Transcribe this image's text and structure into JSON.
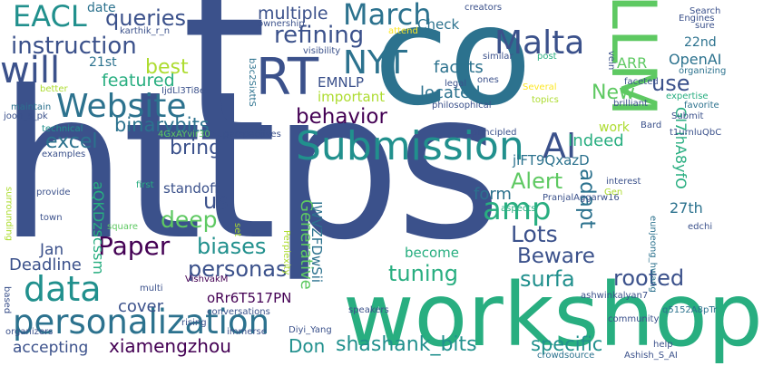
{
  "background": "#ffffff",
  "palette": [
    "#3b518b",
    "#2c728e",
    "#21908d",
    "#28ae80",
    "#5ec962",
    "#addc30",
    "#fde725",
    "#440154"
  ],
  "words": [
    {
      "text": "https",
      "color": "#3b518b"
    },
    {
      "text": "t",
      "color": "#3b518b"
    },
    {
      "text": "co",
      "color": "#2c728e"
    },
    {
      "text": "workshop",
      "color": "#28ae80"
    },
    {
      "text": "LLM",
      "color": "#5ec962"
    },
    {
      "text": "RT",
      "color": "#3b518b"
    },
    {
      "text": "Submission",
      "color": "#21908d"
    },
    {
      "text": "personalization",
      "color": "#2c728e"
    },
    {
      "text": "Website",
      "color": "#2c728e"
    },
    {
      "text": "Paper",
      "color": "#440154"
    },
    {
      "text": "data",
      "color": "#21908d"
    },
    {
      "text": "amp",
      "color": "#28ae80"
    },
    {
      "text": "AI",
      "color": "#3b518b"
    },
    {
      "text": "Malta",
      "color": "#3b518b"
    },
    {
      "text": "March",
      "color": "#2c728e"
    },
    {
      "text": "will",
      "color": "#3b518b"
    },
    {
      "text": "EACL",
      "color": "#21908d"
    },
    {
      "text": "NYT",
      "color": "#2c728e"
    },
    {
      "text": "instruction",
      "color": "#3b518b"
    },
    {
      "text": "queries",
      "color": "#3b518b"
    },
    {
      "text": "refining",
      "color": "#3b518b"
    },
    {
      "text": "multiple",
      "color": "#3b518b"
    },
    {
      "text": "best",
      "color": "#addc30"
    },
    {
      "text": "featured",
      "color": "#28ae80"
    },
    {
      "text": "binarybits",
      "color": "#2c728e"
    },
    {
      "text": "behavior",
      "color": "#440154"
    },
    {
      "text": "excel",
      "color": "#2c728e"
    },
    {
      "text": "bring",
      "color": "#3b518b"
    },
    {
      "text": "deep",
      "color": "#5ec962"
    },
    {
      "text": "us",
      "color": "#3b518b"
    },
    {
      "text": "biases",
      "color": "#21908d"
    },
    {
      "text": "personas",
      "color": "#3b518b"
    },
    {
      "text": "tuning",
      "color": "#28ae80"
    },
    {
      "text": "surfa",
      "color": "#21908d"
    },
    {
      "text": "rooted",
      "color": "#3b518b"
    },
    {
      "text": "Lots",
      "color": "#3b518b"
    },
    {
      "text": "Beware",
      "color": "#3b518b"
    },
    {
      "text": "Alert",
      "color": "#5ec962"
    },
    {
      "text": "adapt",
      "color": "#2c728e"
    },
    {
      "text": "form",
      "color": "#2c728e"
    },
    {
      "text": "Indeed",
      "color": "#28ae80"
    },
    {
      "text": "New",
      "color": "#5ec962"
    },
    {
      "text": "use",
      "color": "#3b518b"
    },
    {
      "text": "ARR",
      "color": "#5ec962"
    },
    {
      "text": "OpenAI",
      "color": "#2c728e"
    },
    {
      "text": "22nd",
      "color": "#2c728e"
    },
    {
      "text": "27th",
      "color": "#2c728e"
    },
    {
      "text": "facets",
      "color": "#2c728e"
    },
    {
      "text": "located",
      "color": "#2c728e"
    },
    {
      "text": "Check",
      "color": "#2c728e"
    },
    {
      "text": "work",
      "color": "#addc30"
    },
    {
      "text": "EMNLP",
      "color": "#3b518b"
    },
    {
      "text": "important",
      "color": "#addc30"
    },
    {
      "text": "Generative",
      "color": "#5ec962"
    },
    {
      "text": "standoff",
      "color": "#3b518b"
    },
    {
      "text": "become",
      "color": "#28ae80"
    },
    {
      "text": "specific",
      "color": "#21908d"
    },
    {
      "text": "shashank_bits",
      "color": "#21908d"
    },
    {
      "text": "Don",
      "color": "#21908d"
    },
    {
      "text": "xiamengzhou",
      "color": "#440154"
    },
    {
      "text": "accepting",
      "color": "#3b518b"
    },
    {
      "text": "cover",
      "color": "#3b518b"
    },
    {
      "text": "Jan",
      "color": "#3b518b"
    },
    {
      "text": "Deadline",
      "color": "#3b518b"
    },
    {
      "text": "21st",
      "color": "#2c728e"
    },
    {
      "text": "date",
      "color": "#2c728e"
    },
    {
      "text": "karthik_r_n",
      "color": "#3b518b"
    },
    {
      "text": "jlFT9QxazD",
      "color": "#2c728e"
    },
    {
      "text": "IWVZFDwSii",
      "color": "#2c728e"
    },
    {
      "text": "aQKDzscssm",
      "color": "#28ae80"
    },
    {
      "text": "GI7ihA8yfO",
      "color": "#28ae80"
    },
    {
      "text": "oRr6T517PN",
      "color": "#440154"
    },
    {
      "text": "IjdLl3Ti8e",
      "color": "#3b518b"
    },
    {
      "text": "b3c2SixttS",
      "color": "#2c728e"
    },
    {
      "text": "4GxAYvir30",
      "color": "#5ec962"
    },
    {
      "text": "t1urnluQbC",
      "color": "#3b518b"
    },
    {
      "text": "q5152A8pTr",
      "color": "#2c728e"
    },
    {
      "text": "eunjeong_hwang",
      "color": "#2c728e"
    },
    {
      "text": "ashwinkalyan7",
      "color": "#3b518b"
    },
    {
      "text": "PranjalAggarw16",
      "color": "#3b518b"
    },
    {
      "text": "Ashish_S_AI",
      "color": "#3b518b"
    },
    {
      "text": "Diyi_Yang",
      "color": "#3b518b"
    },
    {
      "text": "joon_s_pk",
      "color": "#3b518b"
    },
    {
      "text": "VishvakM",
      "color": "#440154"
    },
    {
      "text": "creators",
      "color": "#3b518b"
    },
    {
      "text": "ownership",
      "color": "#3b518b"
    },
    {
      "text": "attend",
      "color": "#fde725"
    },
    {
      "text": "visibility",
      "color": "#3b518b"
    },
    {
      "text": "similar",
      "color": "#3b518b"
    },
    {
      "text": "ones",
      "color": "#3b518b"
    },
    {
      "text": "legal",
      "color": "#3b518b"
    },
    {
      "text": "philosophical",
      "color": "#3b518b"
    },
    {
      "text": "post",
      "color": "#28ae80"
    },
    {
      "text": "Several",
      "color": "#fde725"
    },
    {
      "text": "topics",
      "color": "#addc30"
    },
    {
      "text": "brilliant",
      "color": "#3b518b"
    },
    {
      "text": "principled",
      "color": "#3b518b"
    },
    {
      "text": "perspectives",
      "color": "#3b518b"
    },
    {
      "text": "technical",
      "color": "#21908d"
    },
    {
      "text": "examples",
      "color": "#3b518b"
    },
    {
      "text": "maintain",
      "color": "#2c728e"
    },
    {
      "text": "better",
      "color": "#addc30"
    },
    {
      "text": "first",
      "color": "#28ae80"
    },
    {
      "text": "provide",
      "color": "#3b518b"
    },
    {
      "text": "town",
      "color": "#3b518b"
    },
    {
      "text": "surrounding",
      "color": "#addc30"
    },
    {
      "text": "square",
      "color": "#5ec962"
    },
    {
      "text": "multi",
      "color": "#3b518b"
    },
    {
      "text": "conversations",
      "color": "#3b518b"
    },
    {
      "text": "immerse",
      "color": "#3b518b"
    },
    {
      "text": "rising",
      "color": "#3b518b"
    },
    {
      "text": "speakers",
      "color": "#3b518b"
    },
    {
      "text": "organizers",
      "color": "#3b518b"
    },
    {
      "text": "based",
      "color": "#3b518b"
    },
    {
      "text": "set",
      "color": "#addc30"
    },
    {
      "text": "Perplexity",
      "color": "#addc30"
    },
    {
      "text": "aspects",
      "color": "#28ae80"
    },
    {
      "text": "interest",
      "color": "#3b518b"
    },
    {
      "text": "Gen",
      "color": "#addc30"
    },
    {
      "text": "community",
      "color": "#3b518b"
    },
    {
      "text": "edchi",
      "color": "#3b518b"
    },
    {
      "text": "crowdsource",
      "color": "#2c728e"
    },
    {
      "text": "help",
      "color": "#3b518b"
    },
    {
      "text": "Search",
      "color": "#3b518b"
    },
    {
      "text": "Engines",
      "color": "#3b518b"
    },
    {
      "text": "sure",
      "color": "#3b518b"
    },
    {
      "text": "vein",
      "color": "#3b518b"
    },
    {
      "text": "faceted",
      "color": "#3b518b"
    },
    {
      "text": "organizing",
      "color": "#2c728e"
    },
    {
      "text": "expertise",
      "color": "#28ae80"
    },
    {
      "text": "favorite",
      "color": "#2c728e"
    },
    {
      "text": "Submit",
      "color": "#3b518b"
    },
    {
      "text": "Bard",
      "color": "#3b518b"
    }
  ]
}
